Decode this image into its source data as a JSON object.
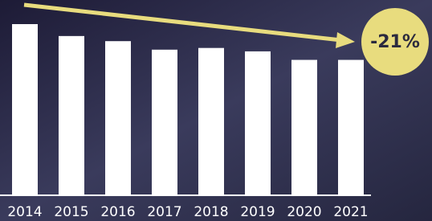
{
  "chart_data": {
    "type": "bar",
    "categories": [
      "2014",
      "2015",
      "2016",
      "2017",
      "2018",
      "2019",
      "2020",
      "2021"
    ],
    "values": [
      100,
      93,
      90,
      85,
      86,
      84,
      79,
      79
    ],
    "color": "#ffffff",
    "ylim": [
      0,
      100
    ],
    "annotation": "-21%"
  }
}
